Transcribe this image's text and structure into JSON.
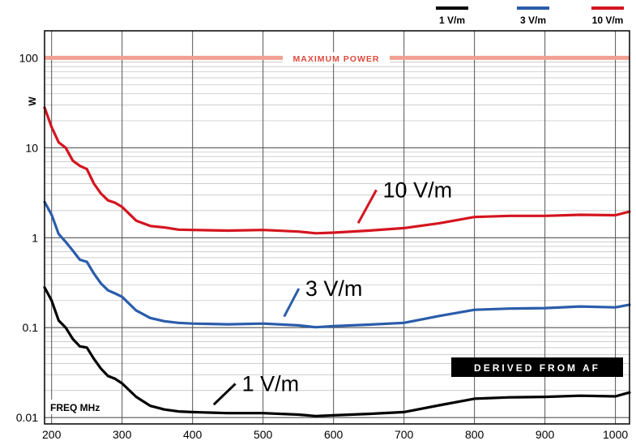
{
  "chart_data": {
    "type": "line",
    "title": "",
    "xlabel": "FREQ  MHz",
    "ylabel": "W",
    "xlim": [
      190,
      1020
    ],
    "ylim": [
      0.0085,
      200
    ],
    "y_scale": "log",
    "x_ticks": [
      200,
      300,
      400,
      500,
      600,
      700,
      800,
      900,
      1000
    ],
    "y_ticks": [
      {
        "value": 0.01,
        "label": "0.01"
      },
      {
        "value": 0.1,
        "label": "0.1"
      },
      {
        "value": 1,
        "label": "1"
      },
      {
        "value": 10,
        "label": "10"
      },
      {
        "value": 100,
        "label": "100"
      }
    ],
    "grid": true,
    "legend_position": "top-right",
    "reference_line": {
      "label": "MAXIMUM POWER",
      "value": 100,
      "color": "#f2a093"
    },
    "annotation_box": "DERIVED FROM AF",
    "callouts": [
      {
        "text": "10 V/m",
        "series": 2,
        "at_x": 635,
        "text_x": 670,
        "text_y": 3.0
      },
      {
        "text": "3 V/m",
        "series": 1,
        "at_x": 530,
        "text_x": 560,
        "text_y": 0.24
      },
      {
        "text": "1 V/m",
        "series": 0,
        "at_x": 430,
        "text_x": 470,
        "text_y": 0.021
      }
    ],
    "series": [
      {
        "name": "1 V/m",
        "color": "#000000",
        "x": [
          190,
          200,
          210,
          220,
          230,
          240,
          250,
          260,
          270,
          280,
          290,
          300,
          320,
          340,
          360,
          380,
          400,
          450,
          500,
          550,
          575,
          600,
          650,
          700,
          750,
          800,
          850,
          900,
          950,
          1000,
          1020
        ],
        "y": [
          0.28,
          0.2,
          0.12,
          0.1,
          0.075,
          0.062,
          0.06,
          0.045,
          0.035,
          0.029,
          0.027,
          0.024,
          0.017,
          0.0135,
          0.0123,
          0.0117,
          0.0115,
          0.0112,
          0.0112,
          0.0108,
          0.0104,
          0.0106,
          0.011,
          0.0115,
          0.0137,
          0.0162,
          0.0168,
          0.017,
          0.0175,
          0.0172,
          0.019
        ]
      },
      {
        "name": "3 V/m",
        "color": "#2a5caa",
        "x": [
          190,
          200,
          210,
          220,
          230,
          240,
          250,
          260,
          270,
          280,
          290,
          300,
          320,
          340,
          360,
          380,
          400,
          450,
          500,
          550,
          575,
          600,
          650,
          700,
          750,
          800,
          850,
          900,
          950,
          1000,
          1020
        ],
        "y": [
          2.5,
          1.8,
          1.1,
          0.9,
          0.72,
          0.57,
          0.54,
          0.4,
          0.31,
          0.26,
          0.24,
          0.22,
          0.155,
          0.128,
          0.118,
          0.113,
          0.111,
          0.109,
          0.111,
          0.106,
          0.101,
          0.104,
          0.108,
          0.113,
          0.135,
          0.158,
          0.163,
          0.165,
          0.172,
          0.168,
          0.18
        ]
      },
      {
        "name": "10 V/m",
        "color": "#d4151f",
        "x": [
          190,
          200,
          210,
          220,
          230,
          240,
          250,
          260,
          270,
          280,
          290,
          300,
          320,
          340,
          360,
          380,
          400,
          450,
          500,
          550,
          575,
          600,
          650,
          700,
          750,
          800,
          850,
          900,
          950,
          1000,
          1020
        ],
        "y": [
          28,
          17,
          11.5,
          10,
          7.2,
          6.3,
          5.8,
          4.0,
          3.1,
          2.6,
          2.45,
          2.2,
          1.55,
          1.35,
          1.3,
          1.23,
          1.22,
          1.2,
          1.22,
          1.17,
          1.12,
          1.14,
          1.2,
          1.28,
          1.45,
          1.7,
          1.75,
          1.75,
          1.8,
          1.78,
          1.95
        ]
      }
    ]
  }
}
